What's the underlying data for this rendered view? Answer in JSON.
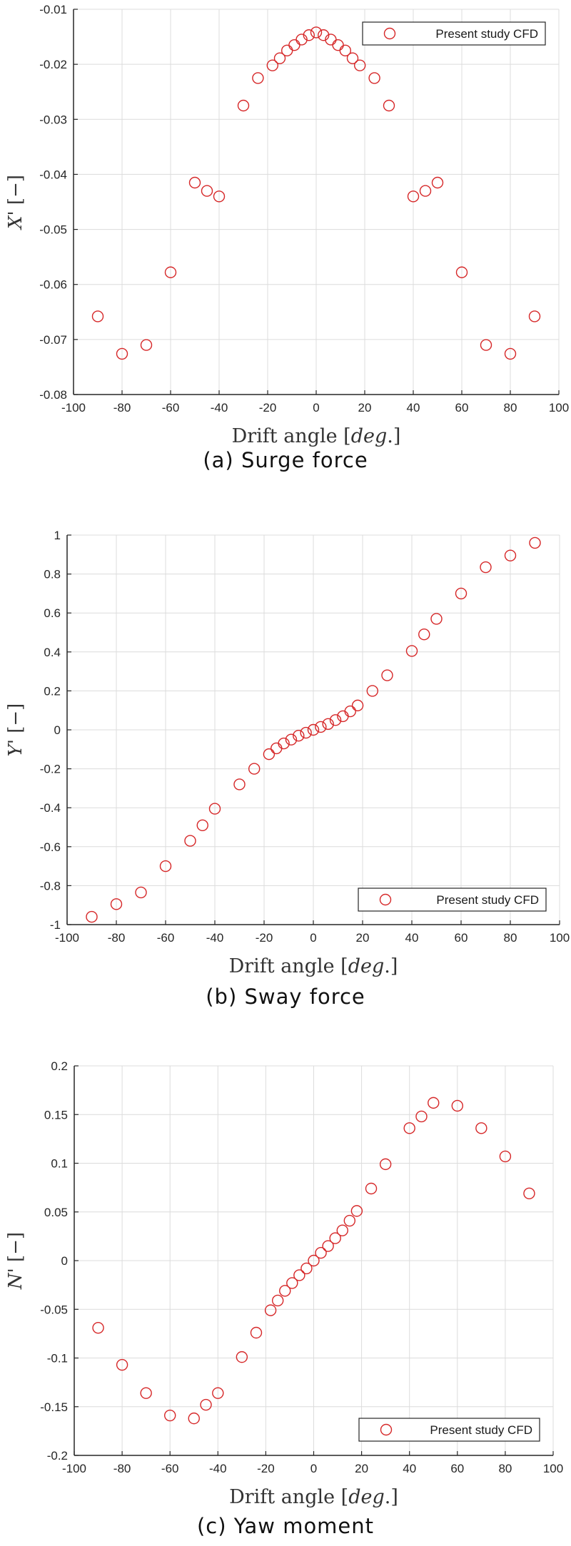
{
  "chart_data": [
    {
      "type": "scatter",
      "id": "surge",
      "caption": "(a) Surge force",
      "xlabel": "Drift angle [deg.]",
      "ylabel": "X' [−]",
      "xlim": [
        -100,
        100
      ],
      "ylim": [
        -0.08,
        -0.01
      ],
      "xticks": [
        -100,
        -80,
        -60,
        -40,
        -20,
        0,
        20,
        40,
        60,
        80,
        100
      ],
      "yticks": [
        -0.08,
        -0.07,
        -0.06,
        -0.05,
        -0.04,
        -0.03,
        -0.02,
        -0.01
      ],
      "ytick_labels": [
        "-0.08",
        "-0.07",
        "-0.06",
        "-0.05",
        "-0.04",
        "-0.03",
        "-0.02",
        "-0.01"
      ],
      "grid": true,
      "legend_position": "top-right",
      "series": [
        {
          "name": "Present study CFD",
          "marker": "open-circle",
          "color": "#d62728",
          "x": [
            -90,
            -80,
            -70,
            -60,
            -50,
            -45,
            -40,
            -30,
            -24,
            -18,
            -15,
            -12,
            -9,
            -6,
            -3,
            0,
            3,
            6,
            9,
            12,
            15,
            18,
            24,
            30,
            40,
            45,
            50,
            60,
            70,
            80,
            90
          ],
          "y": [
            -0.0658,
            -0.0726,
            -0.071,
            -0.0578,
            -0.0415,
            -0.043,
            -0.044,
            -0.0275,
            -0.0225,
            -0.0202,
            -0.0189,
            -0.0175,
            -0.0165,
            -0.0155,
            -0.0147,
            -0.0142,
            -0.0147,
            -0.0155,
            -0.0165,
            -0.0175,
            -0.0189,
            -0.0202,
            -0.0225,
            -0.0275,
            -0.044,
            -0.043,
            -0.0415,
            -0.0578,
            -0.071,
            -0.0726,
            -0.0658
          ]
        }
      ]
    },
    {
      "type": "scatter",
      "id": "sway",
      "caption": "(b) Sway force",
      "xlabel": "Drift angle [deg.]",
      "ylabel": "Y' [−]",
      "xlim": [
        -100,
        100
      ],
      "ylim": [
        -1,
        1
      ],
      "xticks": [
        -100,
        -80,
        -60,
        -40,
        -20,
        0,
        20,
        40,
        60,
        80,
        100
      ],
      "yticks": [
        -1,
        -0.8,
        -0.6,
        -0.4,
        -0.2,
        0,
        0.2,
        0.4,
        0.6,
        0.8,
        1
      ],
      "ytick_labels": [
        "-1",
        "-0.8",
        "-0.6",
        "-0.4",
        "-0.2",
        "0",
        "0.2",
        "0.4",
        "0.6",
        "0.8",
        "1"
      ],
      "grid": true,
      "legend_position": "bottom-right",
      "series": [
        {
          "name": "Present study CFD",
          "marker": "open-circle",
          "color": "#d62728",
          "x": [
            -90,
            -80,
            -70,
            -60,
            -50,
            -45,
            -40,
            -30,
            -24,
            -18,
            -15,
            -12,
            -9,
            -6,
            -3,
            0,
            3,
            6,
            9,
            12,
            15,
            18,
            24,
            30,
            40,
            45,
            50,
            60,
            70,
            80,
            90
          ],
          "y": [
            -0.96,
            -0.895,
            -0.835,
            -0.7,
            -0.57,
            -0.49,
            -0.405,
            -0.28,
            -0.2,
            -0.125,
            -0.095,
            -0.07,
            -0.05,
            -0.03,
            -0.015,
            0.0,
            0.015,
            0.03,
            0.05,
            0.07,
            0.095,
            0.125,
            0.2,
            0.28,
            0.405,
            0.49,
            0.57,
            0.7,
            0.835,
            0.895,
            0.96
          ]
        }
      ]
    },
    {
      "type": "scatter",
      "id": "yaw",
      "caption": "(c) Yaw moment",
      "xlabel": "Drift angle [deg.]",
      "ylabel": "N' [−]",
      "xlim": [
        -100,
        100
      ],
      "ylim": [
        -0.2,
        0.2
      ],
      "xticks": [
        -100,
        -80,
        -60,
        -40,
        -20,
        0,
        20,
        40,
        60,
        80,
        100
      ],
      "yticks": [
        -0.2,
        -0.15,
        -0.1,
        -0.05,
        0,
        0.05,
        0.1,
        0.15,
        0.2
      ],
      "ytick_labels": [
        "-0.2",
        "-0.15",
        "-0.1",
        "-0.05",
        "0",
        "0.05",
        "0.1",
        "0.15",
        "0.2"
      ],
      "grid": true,
      "legend_position": "bottom-right",
      "series": [
        {
          "name": "Present study CFD",
          "marker": "open-circle",
          "color": "#d62728",
          "x": [
            -90,
            -80,
            -70,
            -60,
            -50,
            -45,
            -40,
            -30,
            -24,
            -18,
            -15,
            -12,
            -9,
            -6,
            -3,
            0,
            3,
            6,
            9,
            12,
            15,
            18,
            24,
            30,
            40,
            45,
            50,
            60,
            70,
            80,
            90
          ],
          "y": [
            -0.069,
            -0.107,
            -0.136,
            -0.159,
            -0.162,
            -0.148,
            -0.136,
            -0.099,
            -0.074,
            -0.051,
            -0.041,
            -0.031,
            -0.023,
            -0.015,
            -0.008,
            0.0,
            0.008,
            0.015,
            0.023,
            0.031,
            0.041,
            0.051,
            0.074,
            0.099,
            0.136,
            0.148,
            0.162,
            0.159,
            0.136,
            0.107,
            0.069
          ]
        }
      ]
    }
  ],
  "captions": {
    "a": "(a) Surge force",
    "b": "(b) Sway force",
    "c": "(c) Yaw moment"
  },
  "axis": {
    "xlabel_main": "Drift angle ",
    "xlabel_unit": "[deg.]"
  },
  "legend": {
    "label": "Present study CFD"
  }
}
